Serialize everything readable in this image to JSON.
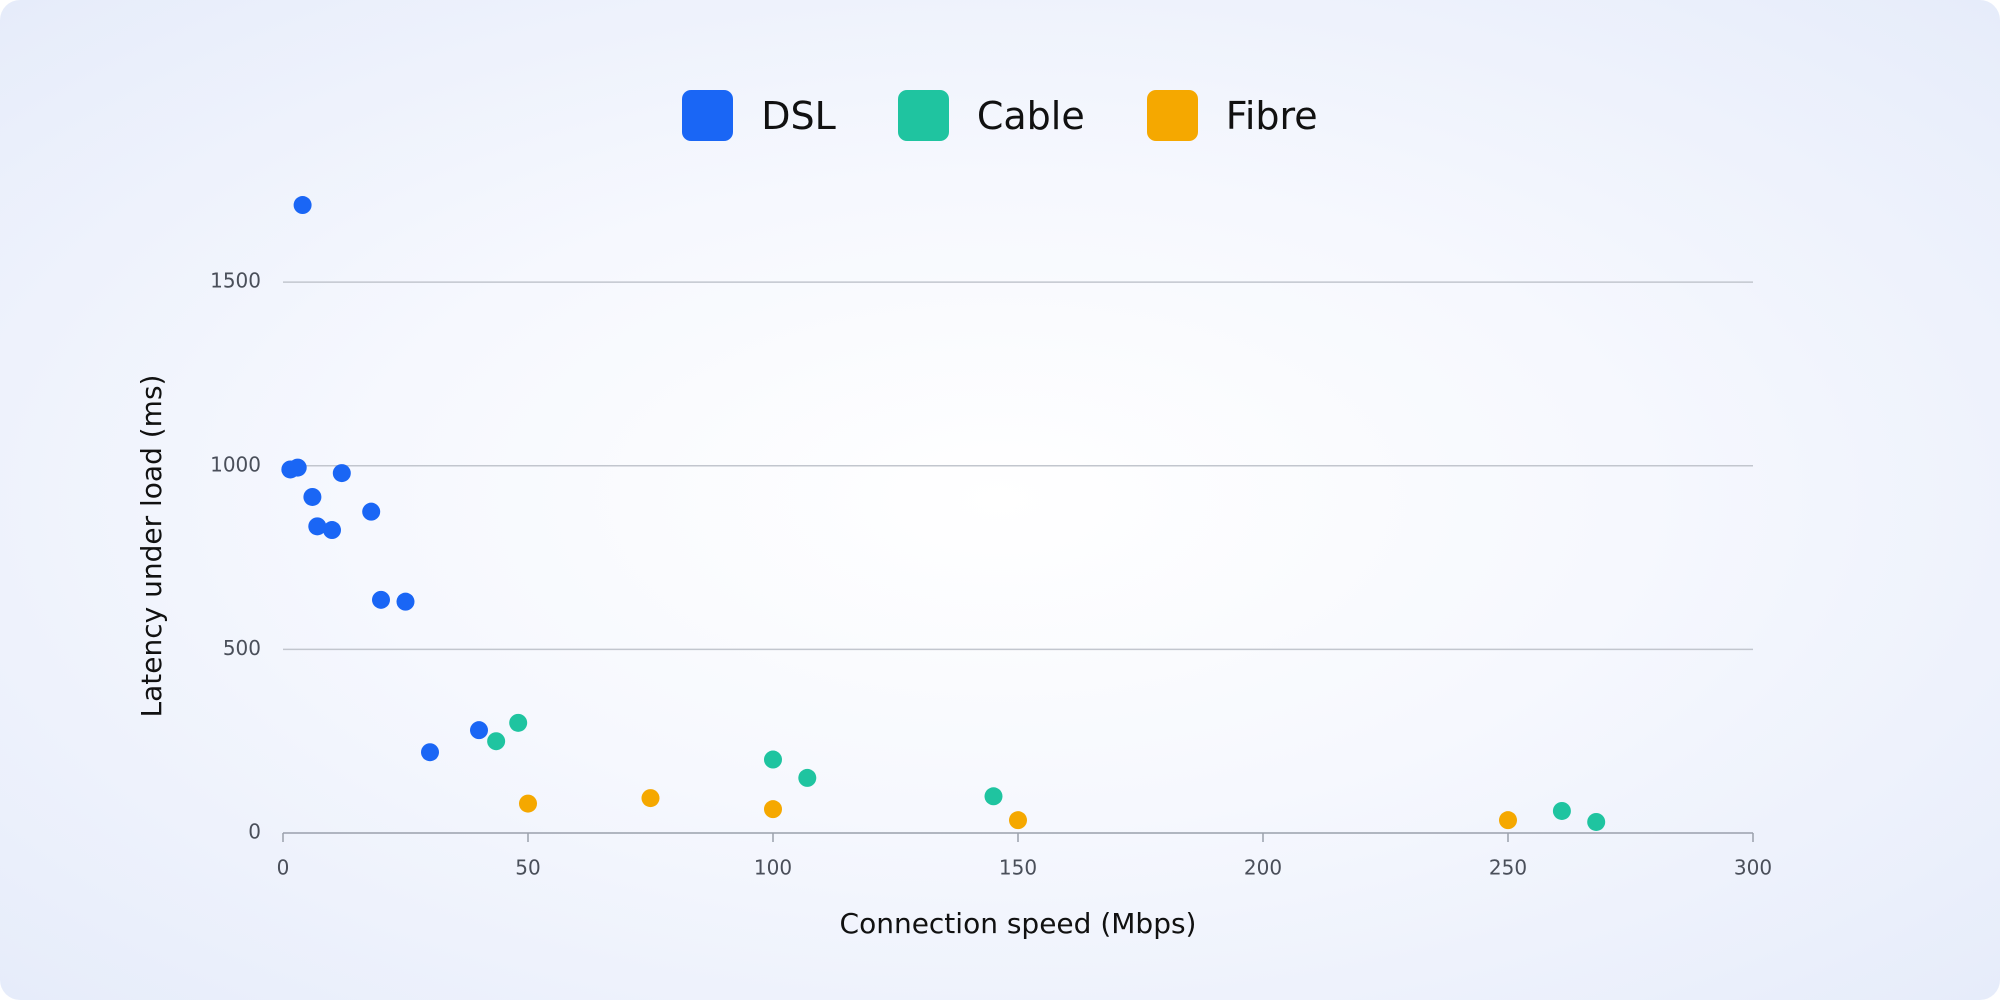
{
  "chart_data": {
    "type": "scatter",
    "x_label": "Connection speed (Mbps)",
    "y_label": "Latency under load (ms)",
    "xlim": [
      0,
      300
    ],
    "xticks": [
      0,
      50,
      100,
      150,
      200,
      250,
      300
    ],
    "ylim": [
      0,
      1800
    ],
    "yticks": [
      0,
      500,
      1000,
      1500
    ],
    "grid": true,
    "legend": "top",
    "series": [
      {
        "name": "DSL",
        "color": "#1a66f5",
        "x": [
          4,
          1.5,
          3,
          12,
          6,
          7,
          10,
          18,
          20,
          25,
          30,
          40
        ],
        "y": [
          1710,
          990,
          995,
          980,
          915,
          835,
          825,
          875,
          635,
          630,
          220,
          280
        ]
      },
      {
        "name": "Cable",
        "color": "#1fc4a0",
        "x": [
          43.5,
          48,
          100,
          107,
          145,
          261,
          268
        ],
        "y": [
          250,
          300,
          200,
          150,
          100,
          60,
          30
        ]
      },
      {
        "name": "Fibre",
        "color": "#f5a800",
        "x": [
          50,
          75,
          100,
          150,
          250
        ],
        "y": [
          80,
          95,
          65,
          35,
          35
        ]
      }
    ]
  }
}
